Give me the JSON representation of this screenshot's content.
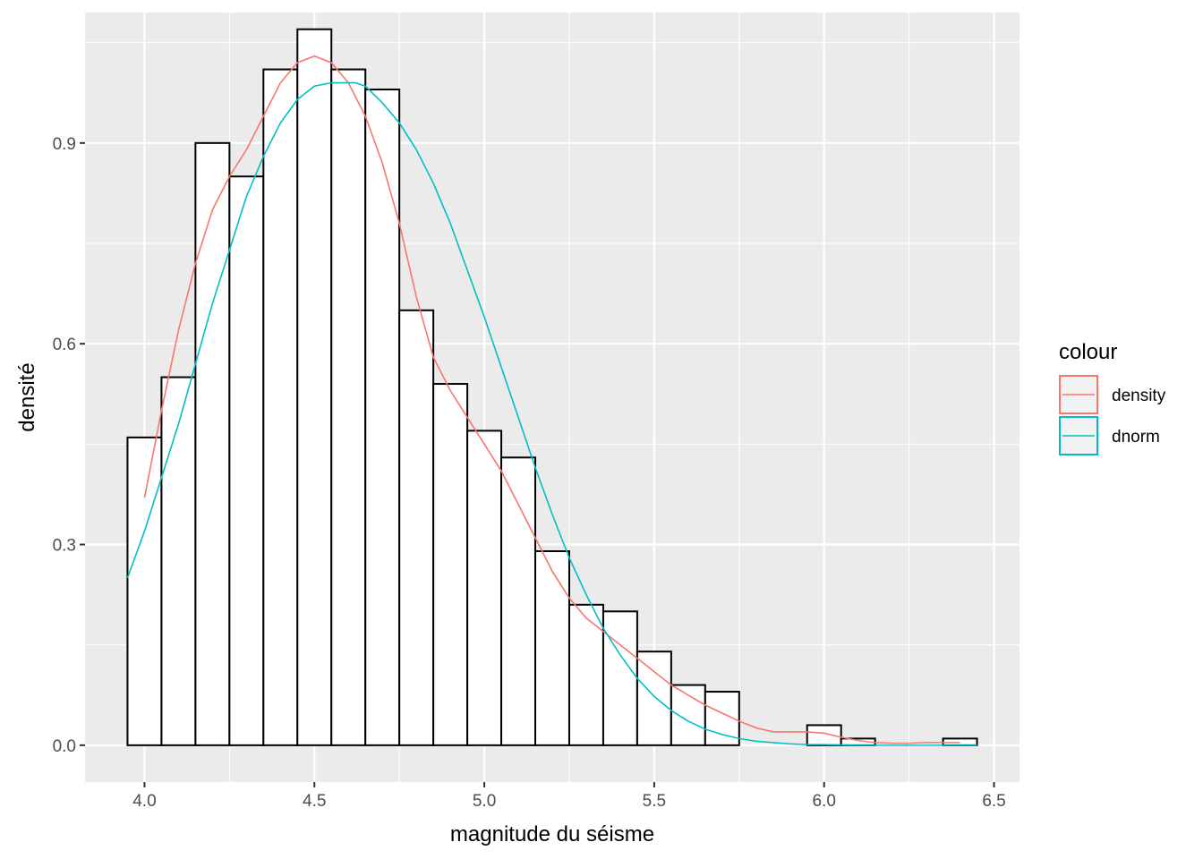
{
  "chart_data": {
    "type": "histogram",
    "xlabel": "magnitude du séisme",
    "ylabel": "densité",
    "xlim": [
      3.825,
      6.575
    ],
    "ylim": [
      -0.055,
      1.095
    ],
    "x_ticks": [
      "4.0",
      "4.5",
      "5.0",
      "5.5",
      "6.0",
      "6.5"
    ],
    "y_ticks": [
      "0.0",
      "0.3",
      "0.6",
      "0.9"
    ],
    "background": "#ebebeb",
    "grid": true,
    "bin_width": 0.1,
    "bins": [
      {
        "x0": 3.95,
        "x1": 4.05,
        "density": 0.46
      },
      {
        "x0": 4.05,
        "x1": 4.15,
        "density": 0.55
      },
      {
        "x0": 4.15,
        "x1": 4.25,
        "density": 0.9
      },
      {
        "x0": 4.25,
        "x1": 4.35,
        "density": 0.85
      },
      {
        "x0": 4.35,
        "x1": 4.45,
        "density": 1.01
      },
      {
        "x0": 4.45,
        "x1": 4.55,
        "density": 1.07
      },
      {
        "x0": 4.55,
        "x1": 4.65,
        "density": 1.01
      },
      {
        "x0": 4.65,
        "x1": 4.75,
        "density": 0.98
      },
      {
        "x0": 4.75,
        "x1": 4.85,
        "density": 0.65
      },
      {
        "x0": 4.85,
        "x1": 4.95,
        "density": 0.54
      },
      {
        "x0": 4.95,
        "x1": 5.05,
        "density": 0.47
      },
      {
        "x0": 5.05,
        "x1": 5.15,
        "density": 0.43
      },
      {
        "x0": 5.15,
        "x1": 5.25,
        "density": 0.29
      },
      {
        "x0": 5.25,
        "x1": 5.35,
        "density": 0.21
      },
      {
        "x0": 5.35,
        "x1": 5.45,
        "density": 0.2
      },
      {
        "x0": 5.45,
        "x1": 5.55,
        "density": 0.14
      },
      {
        "x0": 5.55,
        "x1": 5.65,
        "density": 0.09
      },
      {
        "x0": 5.65,
        "x1": 5.75,
        "density": 0.08
      },
      {
        "x0": 5.75,
        "x1": 5.85,
        "density": 0.0
      },
      {
        "x0": 5.85,
        "x1": 5.95,
        "density": 0.0
      },
      {
        "x0": 5.95,
        "x1": 6.05,
        "density": 0.03
      },
      {
        "x0": 6.05,
        "x1": 6.15,
        "density": 0.01
      },
      {
        "x0": 6.15,
        "x1": 6.25,
        "density": 0.0
      },
      {
        "x0": 6.25,
        "x1": 6.35,
        "density": 0.0
      },
      {
        "x0": 6.35,
        "x1": 6.45,
        "density": 0.01
      }
    ],
    "legend": {
      "title": "colour",
      "position": "right"
    },
    "series": [
      {
        "name": "density",
        "color": "#f8766d",
        "x": [
          4.0,
          4.05,
          4.1,
          4.15,
          4.2,
          4.25,
          4.3,
          4.35,
          4.4,
          4.45,
          4.5,
          4.55,
          4.6,
          4.65,
          4.7,
          4.75,
          4.8,
          4.85,
          4.9,
          4.95,
          5.0,
          5.05,
          5.1,
          5.15,
          5.2,
          5.25,
          5.3,
          5.35,
          5.4,
          5.45,
          5.5,
          5.55,
          5.6,
          5.65,
          5.7,
          5.75,
          5.8,
          5.85,
          5.9,
          5.95,
          6.0,
          6.05,
          6.1,
          6.15,
          6.2,
          6.25,
          6.3,
          6.35,
          6.4
        ],
        "y": [
          0.37,
          0.5,
          0.62,
          0.72,
          0.8,
          0.85,
          0.89,
          0.94,
          0.99,
          1.02,
          1.03,
          1.02,
          0.99,
          0.94,
          0.87,
          0.78,
          0.67,
          0.58,
          0.53,
          0.49,
          0.45,
          0.41,
          0.36,
          0.31,
          0.26,
          0.22,
          0.19,
          0.17,
          0.15,
          0.13,
          0.11,
          0.09,
          0.075,
          0.06,
          0.048,
          0.036,
          0.026,
          0.02,
          0.02,
          0.02,
          0.018,
          0.012,
          0.007,
          0.004,
          0.003,
          0.003,
          0.004,
          0.004,
          0.004
        ]
      },
      {
        "name": "dnorm",
        "color": "#00bfc4",
        "x": [
          3.95,
          4.0,
          4.05,
          4.1,
          4.15,
          4.2,
          4.25,
          4.3,
          4.35,
          4.4,
          4.45,
          4.5,
          4.55,
          4.6,
          4.62,
          4.65,
          4.7,
          4.75,
          4.8,
          4.85,
          4.9,
          4.95,
          5.0,
          5.05,
          5.1,
          5.15,
          5.2,
          5.25,
          5.3,
          5.35,
          5.4,
          5.45,
          5.5,
          5.55,
          5.6,
          5.65,
          5.7,
          5.75,
          5.8,
          5.85,
          5.9,
          5.95,
          6.0,
          6.1,
          6.2,
          6.3,
          6.45
        ],
        "y": [
          0.25,
          0.32,
          0.4,
          0.48,
          0.57,
          0.66,
          0.74,
          0.82,
          0.88,
          0.93,
          0.965,
          0.985,
          0.99,
          0.99,
          0.99,
          0.985,
          0.96,
          0.93,
          0.89,
          0.84,
          0.78,
          0.71,
          0.64,
          0.565,
          0.49,
          0.415,
          0.345,
          0.28,
          0.225,
          0.175,
          0.135,
          0.1,
          0.073,
          0.052,
          0.036,
          0.024,
          0.016,
          0.01,
          0.006,
          0.004,
          0.002,
          0.001,
          0.001,
          0.0,
          0.0,
          0.0,
          0.0
        ]
      }
    ]
  }
}
